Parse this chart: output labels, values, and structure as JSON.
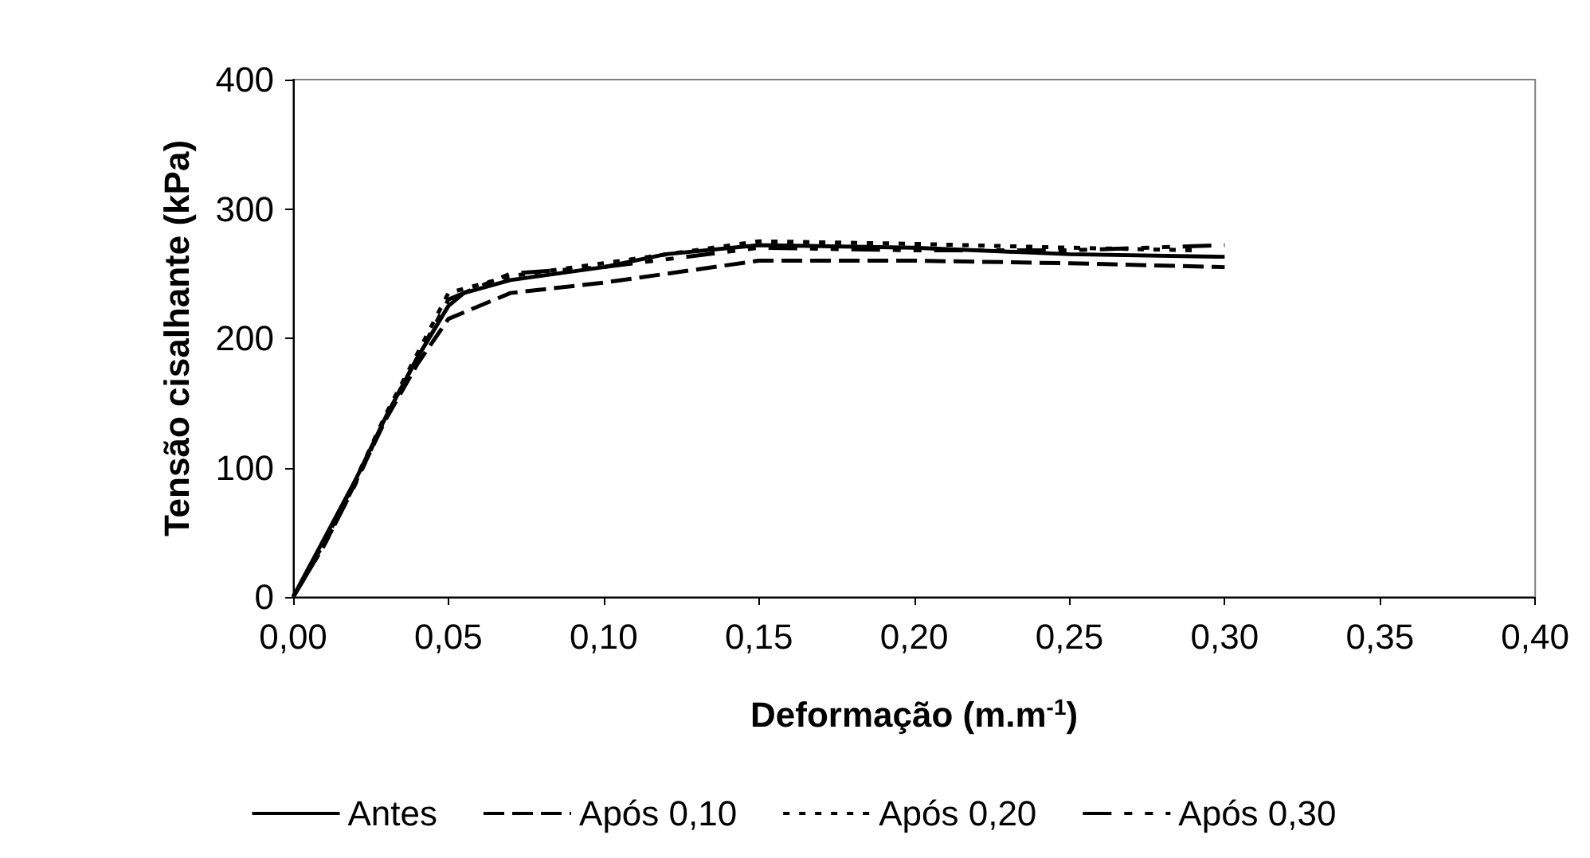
{
  "chart_data": {
    "type": "line",
    "xlabel": "Deformação (m.m$^{-1}$)",
    "ylabel": "Tensão cisalhante (kPa)",
    "xlim": [
      0,
      0.4
    ],
    "xticks": [
      {
        "value": 0,
        "label": "0,00"
      },
      {
        "value": 0.05,
        "label": "0,05"
      },
      {
        "value": 0.1,
        "label": "0,10"
      },
      {
        "value": 0.15,
        "label": "0,15"
      },
      {
        "value": 0.2,
        "label": "0,20"
      },
      {
        "value": 0.25,
        "label": "0,25"
      },
      {
        "value": 0.3,
        "label": "0,30"
      },
      {
        "value": 0.35,
        "label": "0,35"
      },
      {
        "value": 0.4,
        "label": "0,40"
      }
    ],
    "ylim": [
      0,
      400
    ],
    "yticks": [
      0,
      100,
      200,
      300,
      400
    ],
    "grid": false,
    "legend": "bottom",
    "marker": "none",
    "series": [
      {
        "name": "Antes",
        "color": "#000000",
        "line_style": "solid",
        "x": [
          0,
          0.01,
          0.02,
          0.03,
          0.04,
          0.05,
          0.055,
          0.07,
          0.1,
          0.12,
          0.15,
          0.2,
          0.25,
          0.3
        ],
        "values": [
          0,
          45,
          90,
          140,
          185,
          225,
          235,
          245,
          255,
          265,
          272,
          270,
          265,
          263
        ]
      },
      {
        "name": "Após 0,10",
        "color": "#000000",
        "line_style": "dashed",
        "x": [
          0,
          0.01,
          0.02,
          0.03,
          0.04,
          0.05,
          0.055,
          0.07,
          0.1,
          0.15,
          0.2,
          0.25,
          0.3
        ],
        "values": [
          0,
          40,
          88,
          138,
          180,
          215,
          220,
          235,
          243,
          260,
          260,
          258,
          255
        ]
      },
      {
        "name": "Após 0,20",
        "color": "#000000",
        "line_style": "dotted",
        "x": [
          0,
          0.01,
          0.02,
          0.03,
          0.04,
          0.05,
          0.07,
          0.1,
          0.15,
          0.2,
          0.25,
          0.29
        ],
        "values": [
          0,
          42,
          90,
          142,
          188,
          235,
          248,
          258,
          275,
          273,
          270,
          268
        ]
      },
      {
        "name": "Após 0,30",
        "color": "#000000",
        "line_style": "dashdot",
        "x": [
          0,
          0.01,
          0.02,
          0.03,
          0.04,
          0.05,
          0.07,
          0.1,
          0.15,
          0.2,
          0.25,
          0.3
        ],
        "values": [
          0,
          40,
          87,
          140,
          185,
          230,
          250,
          255,
          270,
          268,
          268,
          272
        ]
      }
    ]
  }
}
